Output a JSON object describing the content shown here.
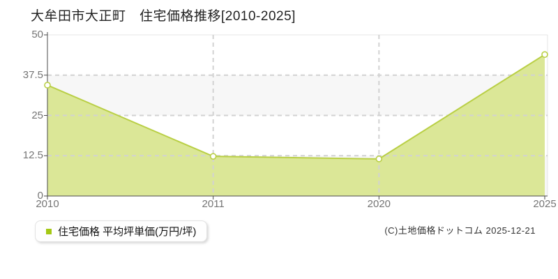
{
  "title": "大牟田市大正町　住宅価格推移[2010-2025]",
  "legend": {
    "label": "住宅価格 平均坪単価(万円/坪)",
    "marker_color": "#a4c814"
  },
  "footer": {
    "copyright": "(C)土地価格ドットコム 2025-12-21"
  },
  "chart_data": {
    "type": "area",
    "title": "大牟田市大正町　住宅価格推移[2010-2025]",
    "categories": [
      "2010",
      "2011",
      "2020",
      "2025"
    ],
    "series": [
      {
        "name": "住宅価格 平均坪単価(万円/坪)",
        "values": [
          34.4,
          12.3,
          11.5,
          43.9
        ]
      }
    ],
    "xlabel": "",
    "ylabel": "",
    "ylim": [
      0,
      50
    ],
    "yticks": [
      0,
      12.5,
      25,
      37.5,
      50
    ],
    "grid": "horizontal dashed at yticks, vertical dashed at inner categories",
    "legend_position": "bottom-left",
    "colors": {
      "line": "#b9cf45",
      "fill": "#dbe797",
      "marker_fill": "#ffffff",
      "band": "#f7f7f7",
      "grid": "#d2d2d2",
      "border": "#e4e4e4",
      "axis": "#4a4a4a",
      "tick_label": "#757575"
    }
  }
}
